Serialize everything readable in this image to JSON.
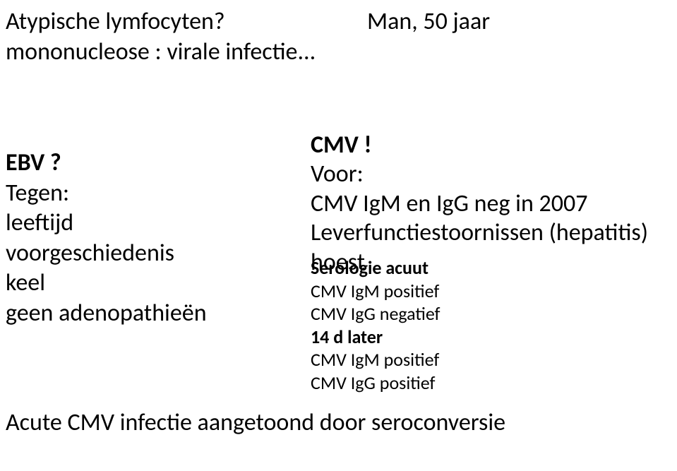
{
  "top": {
    "left_line1": "Atypische lymfocyten?",
    "left_line2": "mononucleose : virale infectie...",
    "right": "Man, 50 jaar"
  },
  "left": {
    "heading": "EBV ?",
    "l1": "Tegen:",
    "l2": "leeftijd",
    "l3": "voorgeschiedenis",
    "l4": "keel",
    "l5": "geen adenopathieën"
  },
  "right": {
    "heading": "CMV !",
    "l1": "Voor:",
    "l2": "CMV IgM en IgG neg in 2007",
    "l3": "Leverfunctiestoornissen (hepatitis)",
    "l4": "hoest"
  },
  "serology": {
    "header": "Serologie acuut",
    "s1": "CMV IgM positief",
    "s2": "CMV IgG negatief",
    "s3": "14 d later",
    "s4": "CMV IgM positief",
    "s5": "CMV IgG positief"
  },
  "bottom": "Acute CMV infectie aangetoond door seroconversie"
}
